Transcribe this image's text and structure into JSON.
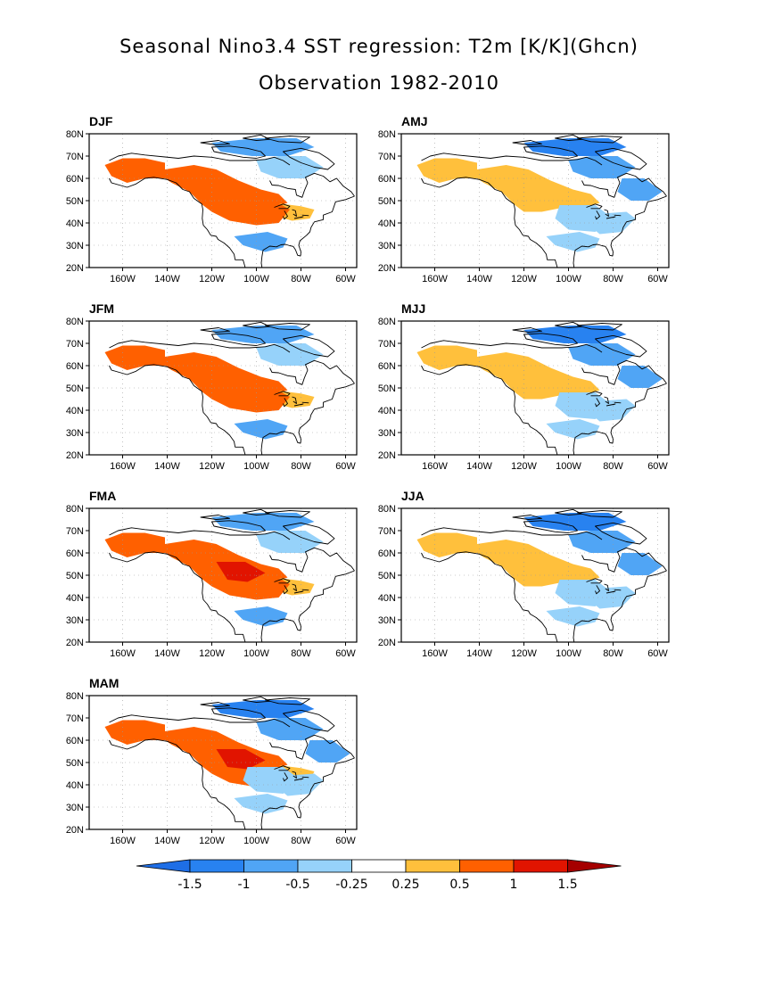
{
  "title_line1": "Seasonal Nino3.4 SST regression: T2m [K/K](Ghcn)",
  "title_line2": "Observation 1982-2010",
  "lat_ticks": [
    "80N",
    "70N",
    "60N",
    "50N",
    "40N",
    "30N",
    "20N"
  ],
  "lon_ticks": [
    "160W",
    "140W",
    "120W",
    "100W",
    "80W",
    "60W"
  ],
  "colorbar": {
    "labels": [
      "-1.5",
      "-1",
      "-0.5",
      "-0.25",
      "0.25",
      "0.5",
      "1",
      "1.5"
    ],
    "colors": [
      "#1e6ee6",
      "#2882f0",
      "#50a5f5",
      "#96d2fa",
      "#ffffff",
      "#ffc03c",
      "#ff6000",
      "#e11400",
      "#a50000"
    ]
  },
  "palette": {
    "strong_neg": "#2882f0",
    "neg": "#50a5f5",
    "weak_neg": "#96d2fa",
    "weak_pos": "#ffc03c",
    "pos": "#ff6000",
    "strong_pos": "#e11400"
  },
  "panels": [
    {
      "id": "DJF",
      "label": "DJF",
      "warm": 2,
      "cold": 1
    },
    {
      "id": "AMJ",
      "label": "AMJ",
      "warm": 1,
      "cold": 2
    },
    {
      "id": "JFM",
      "label": "JFM",
      "warm": 2,
      "cold": 1
    },
    {
      "id": "MJJ",
      "label": "MJJ",
      "warm": 1,
      "cold": 2
    },
    {
      "id": "FMA",
      "label": "FMA",
      "warm": 3,
      "cold": 1
    },
    {
      "id": "JJA",
      "label": "JJA",
      "warm": 1,
      "cold": 2
    },
    {
      "id": "MAM",
      "label": "MAM",
      "warm": 3,
      "cold": 2
    }
  ]
}
